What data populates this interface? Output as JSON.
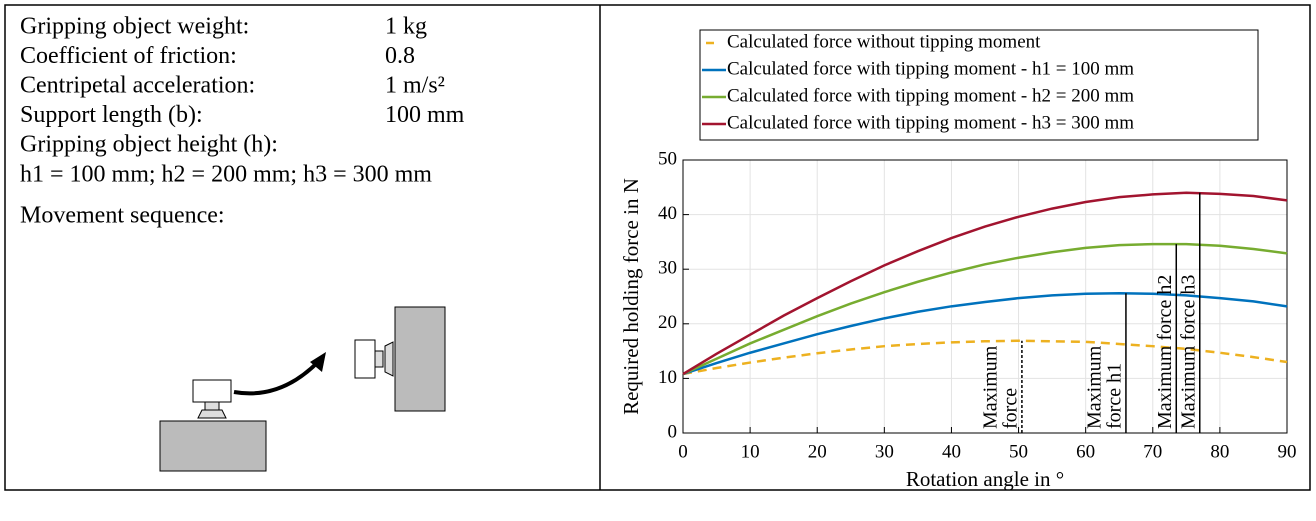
{
  "parameters": [
    {
      "label": "Gripping object weight:",
      "value": "1 kg"
    },
    {
      "label": "Coefficient of friction:",
      "value": "0.8"
    },
    {
      "label": "Centripetal acceleration:",
      "value": "1 m/s²"
    },
    {
      "label": "Support length (b):",
      "value": "100 mm"
    }
  ],
  "height_label": "Gripping object height (h):",
  "height_values": "h1 = 100 mm; h2 = 200 mm; h3 = 300 mm",
  "movement_label": "Movement sequence:",
  "chart_data": {
    "type": "line",
    "x": [
      0,
      5,
      10,
      15,
      20,
      25,
      30,
      35,
      40,
      45,
      50,
      55,
      60,
      65,
      70,
      75,
      80,
      85,
      90
    ],
    "series": [
      {
        "name": "Calculated force without tipping moment",
        "color": "#EDB120",
        "dashed": true,
        "values": [
          10.8,
          11.9,
          12.9,
          13.8,
          14.6,
          15.3,
          15.9,
          16.3,
          16.6,
          16.8,
          16.9,
          16.8,
          16.7,
          16.3,
          15.9,
          15.4,
          14.7,
          13.9,
          13.0
        ]
      },
      {
        "name": "Calculated force with tipping moment - h1 = 100 mm",
        "color": "#0072BD",
        "dashed": false,
        "values": [
          10.8,
          12.8,
          14.7,
          16.4,
          18.1,
          19.6,
          21.0,
          22.2,
          23.2,
          24.0,
          24.7,
          25.2,
          25.5,
          25.6,
          25.5,
          25.2,
          24.7,
          24.1,
          23.2
        ]
      },
      {
        "name": "Calculated force with tipping moment - h2 = 200 mm",
        "color": "#77AC30",
        "dashed": false,
        "values": [
          10.8,
          13.6,
          16.4,
          18.9,
          21.4,
          23.7,
          25.8,
          27.7,
          29.4,
          30.9,
          32.1,
          33.1,
          33.9,
          34.4,
          34.6,
          34.6,
          34.3,
          33.7,
          32.9
        ]
      },
      {
        "name": "Calculated force with tipping moment - h3 = 300 mm",
        "color": "#A2142F",
        "dashed": false,
        "values": [
          10.8,
          14.5,
          18.0,
          21.5,
          24.7,
          27.8,
          30.7,
          33.3,
          35.7,
          37.8,
          39.6,
          41.1,
          42.3,
          43.2,
          43.7,
          44.0,
          43.8,
          43.4,
          42.6
        ]
      }
    ],
    "markers": [
      {
        "x": 50.5,
        "y": 16.9,
        "dashed": true,
        "label": [
          "Maximum",
          "force"
        ]
      },
      {
        "x": 66,
        "y": 25.6,
        "dashed": false,
        "label": [
          "Maximum",
          "force h1"
        ]
      },
      {
        "x": 73.5,
        "y": 34.6,
        "dashed": false,
        "label": [
          "Maximum force h2"
        ]
      },
      {
        "x": 77,
        "y": 44.0,
        "dashed": false,
        "label": [
          "Maximum force h3"
        ]
      }
    ],
    "xlabel": "Rotation angle in °",
    "ylabel": "Required holding force in N",
    "xlim": [
      0,
      90
    ],
    "xticks": [
      0,
      10,
      20,
      30,
      40,
      50,
      60,
      70,
      80,
      90
    ],
    "ylim": [
      0,
      50
    ],
    "yticks": [
      0,
      10,
      20,
      30,
      40,
      50
    ],
    "grid": true
  }
}
